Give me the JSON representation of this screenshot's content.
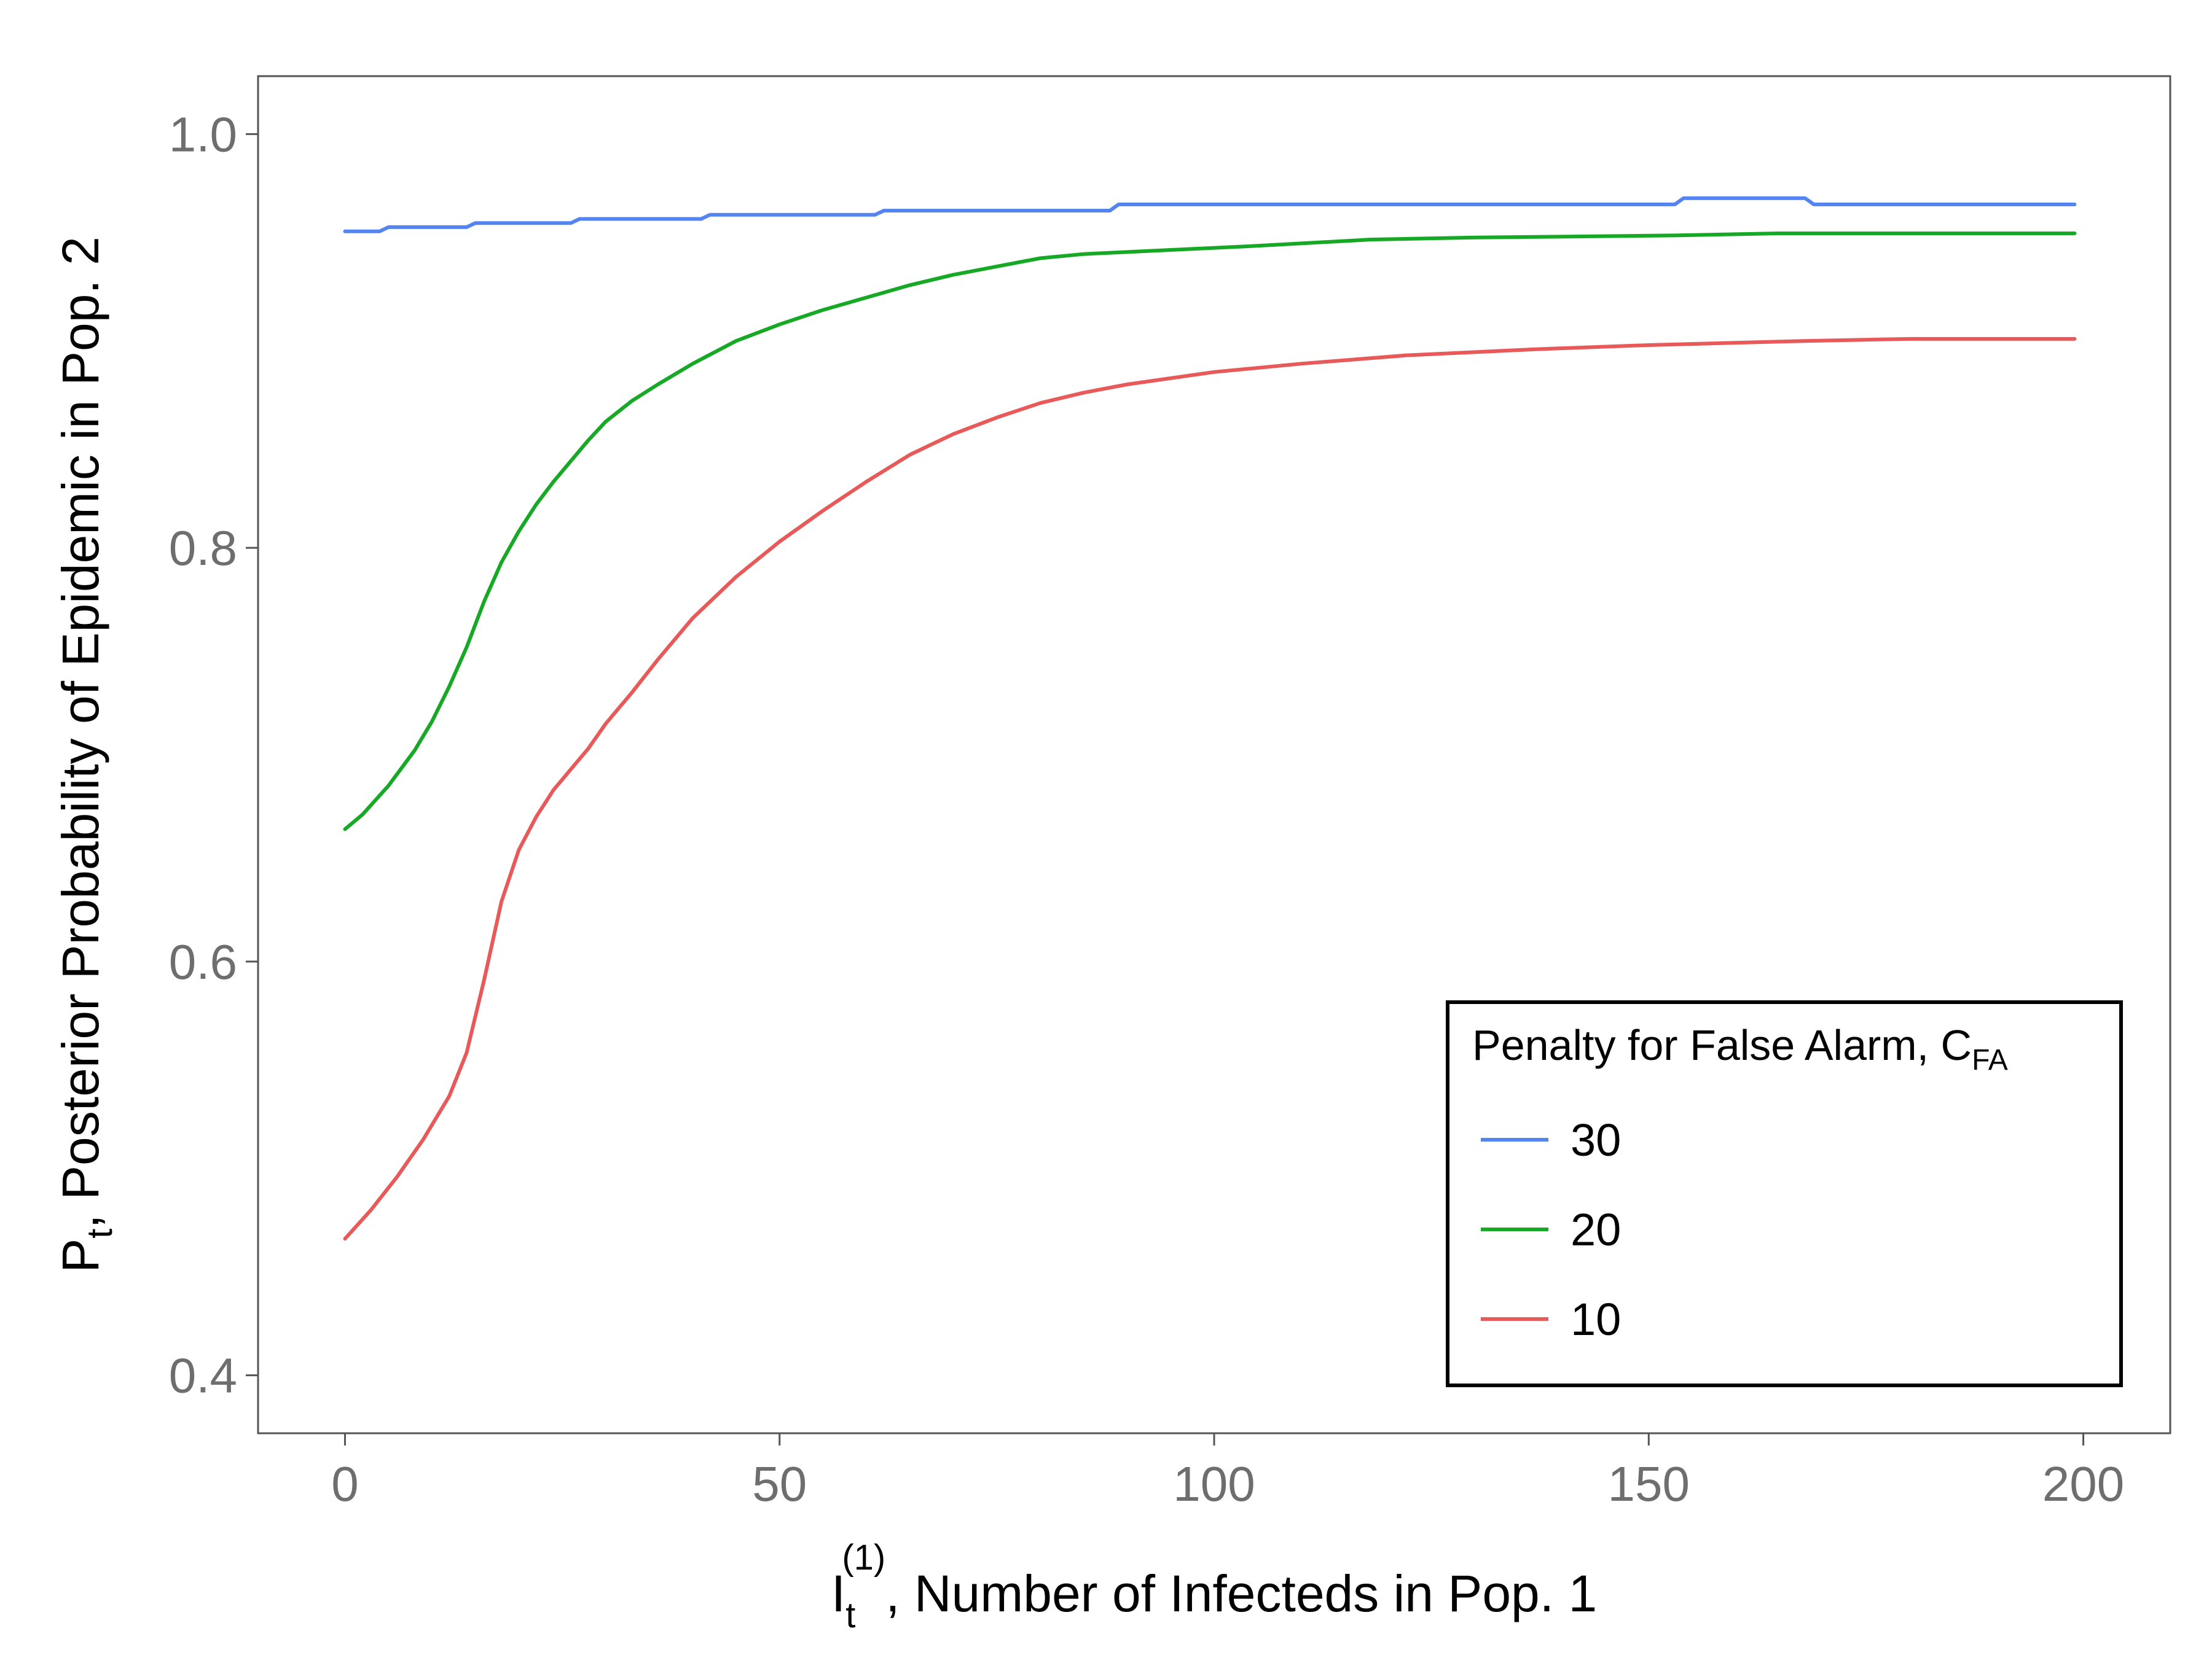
{
  "chart_data": {
    "type": "line",
    "xlabel": {
      "main": "I",
      "sub": "t",
      "sup": "(1)",
      "rest": ", Number of Infecteds in Pop. 1"
    },
    "ylabel": {
      "main": "P",
      "sub": "t",
      "rest": ", Posterior Probability of Epidemic in Pop. 2"
    },
    "xlim": [
      -10,
      210
    ],
    "ylim": [
      0.372,
      1.028
    ],
    "x_ticks": [
      0,
      50,
      100,
      150,
      200
    ],
    "x_tick_labels": [
      "0",
      "50",
      "100",
      "150",
      "200"
    ],
    "y_ticks": [
      0.4,
      0.6,
      0.8,
      1.0
    ],
    "y_tick_labels": [
      "0.4",
      "0.6",
      "0.8",
      "1.0"
    ],
    "grid": false,
    "legend": {
      "title_main": "Penalty for False Alarm, C",
      "title_sub": "FA",
      "position": "bottom-right"
    },
    "series": [
      {
        "name": "30",
        "color": "#5384ef",
        "x": [
          0,
          4,
          5,
          14,
          15,
          26,
          27,
          41,
          42,
          61,
          62,
          88,
          89,
          153,
          154,
          168,
          169,
          199
        ],
        "y": [
          0.953,
          0.953,
          0.955,
          0.955,
          0.957,
          0.957,
          0.959,
          0.959,
          0.961,
          0.961,
          0.963,
          0.963,
          0.966,
          0.966,
          0.969,
          0.969,
          0.966,
          0.966
        ]
      },
      {
        "name": "20",
        "color": "#17a925",
        "x": [
          0,
          2,
          5,
          8,
          10,
          12,
          14,
          16,
          18,
          20,
          22,
          24,
          26,
          28,
          30,
          33,
          36,
          40,
          45,
          50,
          55,
          60,
          65,
          70,
          75,
          80,
          85,
          90,
          95,
          105,
          118,
          130,
          153,
          165,
          180,
          199
        ],
        "y": [
          0.664,
          0.671,
          0.685,
          0.702,
          0.716,
          0.733,
          0.752,
          0.774,
          0.793,
          0.808,
          0.821,
          0.832,
          0.842,
          0.852,
          0.861,
          0.871,
          0.879,
          0.889,
          0.9,
          0.908,
          0.915,
          0.921,
          0.927,
          0.932,
          0.936,
          0.94,
          0.942,
          0.943,
          0.944,
          0.946,
          0.949,
          0.95,
          0.951,
          0.952,
          0.952,
          0.952
        ]
      },
      {
        "name": "10",
        "color": "#e8595a",
        "x": [
          0,
          3,
          6,
          9,
          12,
          14,
          16,
          18,
          20,
          22,
          24,
          26,
          28,
          30,
          33,
          36,
          40,
          45,
          50,
          55,
          60,
          65,
          70,
          75,
          80,
          85,
          90,
          95,
          100,
          110,
          122,
          137,
          150,
          168,
          180,
          199
        ],
        "y": [
          0.466,
          0.48,
          0.496,
          0.514,
          0.535,
          0.556,
          0.591,
          0.629,
          0.654,
          0.67,
          0.683,
          0.693,
          0.703,
          0.715,
          0.73,
          0.746,
          0.766,
          0.786,
          0.803,
          0.818,
          0.832,
          0.845,
          0.855,
          0.863,
          0.87,
          0.875,
          0.879,
          0.882,
          0.885,
          0.889,
          0.893,
          0.896,
          0.898,
          0.9,
          0.901,
          0.901
        ]
      }
    ]
  }
}
